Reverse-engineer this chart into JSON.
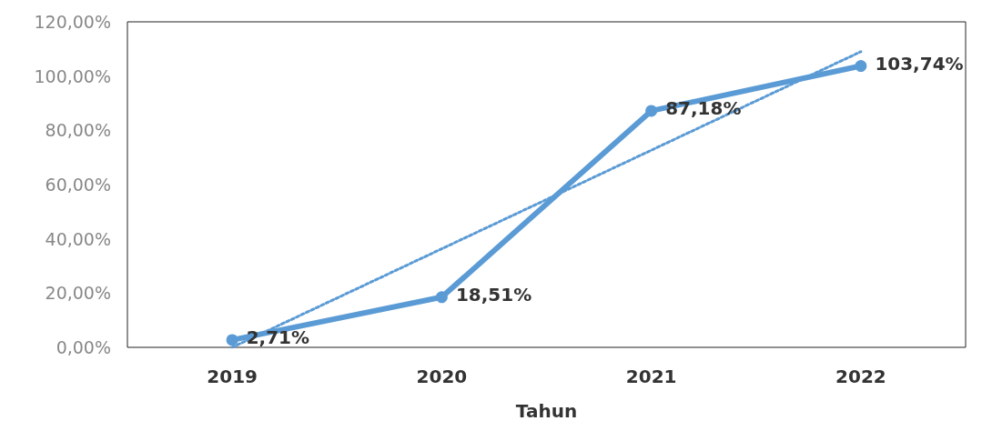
{
  "chart_data": {
    "type": "line",
    "xlabel": "Tahun",
    "categories": [
      "2019",
      "2020",
      "2021",
      "2022"
    ],
    "series": [
      {
        "color": "#5b9bd5",
        "values": [
          2.71,
          18.51,
          87.18,
          103.74
        ],
        "value_labels": [
          "2,71%",
          "18,51%",
          "87,18%",
          "103,74%"
        ],
        "marker": "circle",
        "line_style": "solid"
      },
      {
        "type": "line",
        "color": "#5b9bd5",
        "values": [
          0,
          null,
          null,
          109
        ],
        "marker": "none",
        "line_style": "dotted"
      }
    ],
    "ylim": [
      0,
      120
    ],
    "yticks": [
      {
        "value": 0,
        "label": "0,00%"
      },
      {
        "value": 20,
        "label": "20,00%"
      },
      {
        "value": 40,
        "label": "40,00%"
      },
      {
        "value": 60,
        "label": "60,00%"
      },
      {
        "value": 80,
        "label": "80,00%"
      },
      {
        "value": 100,
        "label": "100,00%"
      },
      {
        "value": 120,
        "label": "120,00%"
      }
    ],
    "grid": false
  }
}
